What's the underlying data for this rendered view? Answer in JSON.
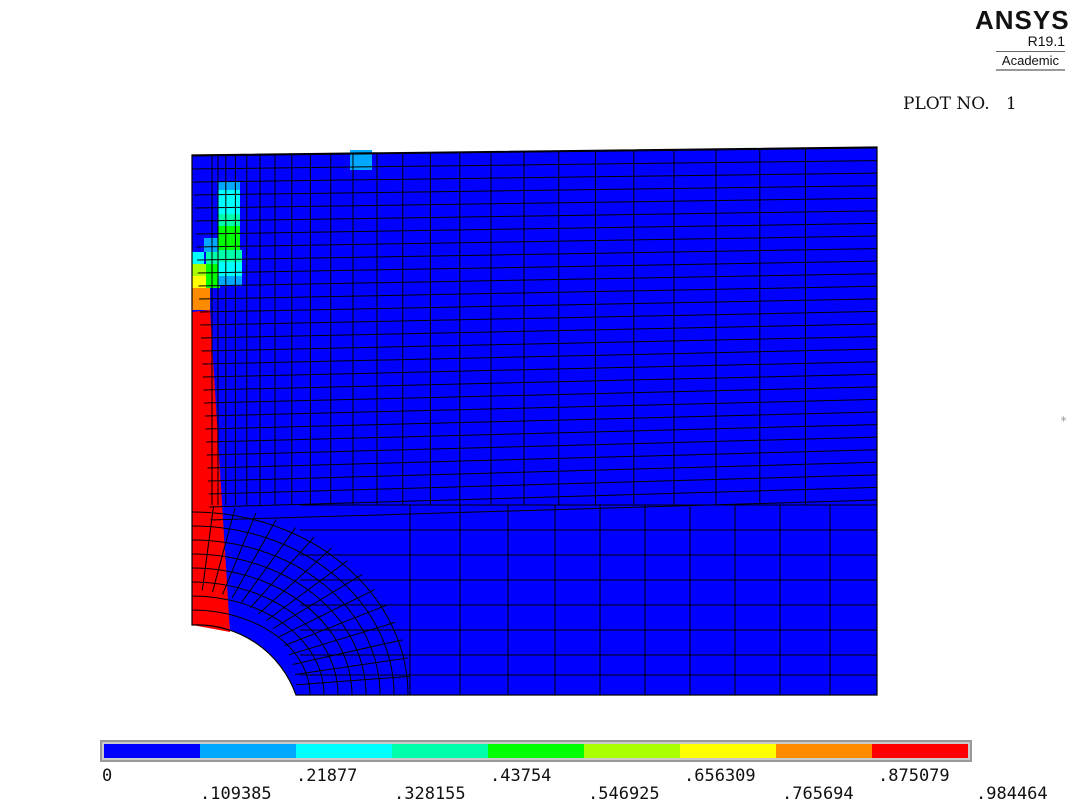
{
  "header": {
    "brand": "ANSYS",
    "version": "R19.1",
    "edition": "Academic",
    "plot_label": "PLOT NO.   1",
    "marker": "*"
  },
  "contour": {
    "background_color": "#0000ff",
    "mesh_line_color": "#000000",
    "hotspot_colors": [
      "#ff0000",
      "#ff8c00",
      "#ffff00",
      "#aaff00",
      "#00ff00",
      "#00ffaa",
      "#00ffff",
      "#00a8ff"
    ]
  },
  "legend": {
    "band_colors": [
      "#0000ff",
      "#00a8ff",
      "#00ffff",
      "#00ffaa",
      "#00ff00",
      "#aaff00",
      "#ffff00",
      "#ff8c00",
      "#ff0000"
    ],
    "upper_labels": [
      "0",
      ".21877",
      ".43754",
      ".656309",
      ".875079"
    ],
    "lower_labels": [
      ".109385",
      ".328155",
      ".546925",
      ".765694",
      ".984464"
    ]
  }
}
